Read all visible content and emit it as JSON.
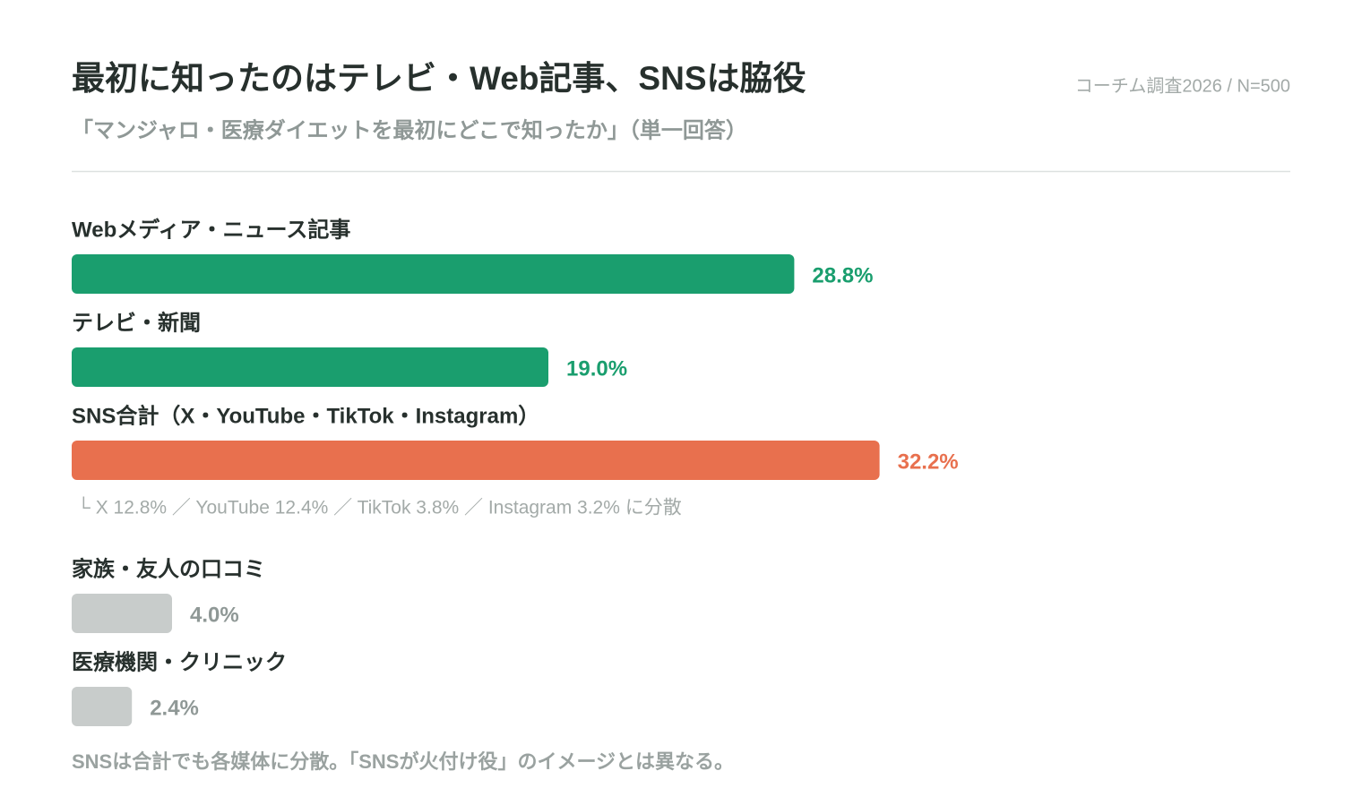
{
  "chart_data": {
    "type": "bar",
    "title": "最初に知ったのはテレビ・Web記事、SNSは脇役",
    "subtitle": "「マンジャロ・医療ダイエットを最初にどこで知ったか」（単一回答）",
    "source": "コーチム調査2026 / N=500",
    "categories": [
      "Webメディア・ニュース記事",
      "テレビ・新聞",
      "SNS合計（X・YouTube・TikTok・Instagram）",
      "家族・友人の口コミ",
      "医療機関・クリニック"
    ],
    "values": [
      28.8,
      19.0,
      32.2,
      4.0,
      2.4
    ],
    "value_labels": [
      "28.8%",
      "19.0%",
      "32.2%",
      "4.0%",
      "2.4%"
    ],
    "colors": [
      "#1a9e6e",
      "#1a9e6e",
      "#e8704e",
      "#c8cccb",
      "#c8cccb"
    ],
    "label_colors": [
      "#1a9e6e",
      "#1a9e6e",
      "#e8704e",
      "#8f9896",
      "#8f9896"
    ],
    "breakdown_note": "└ X 12.8% ／ YouTube 12.4% ／ TikTok 3.8% ／ Instagram 3.2% に分散",
    "footnote": "SNSは合計でも各媒体に分散。「SNSが火付け役」のイメージとは異なる。"
  }
}
